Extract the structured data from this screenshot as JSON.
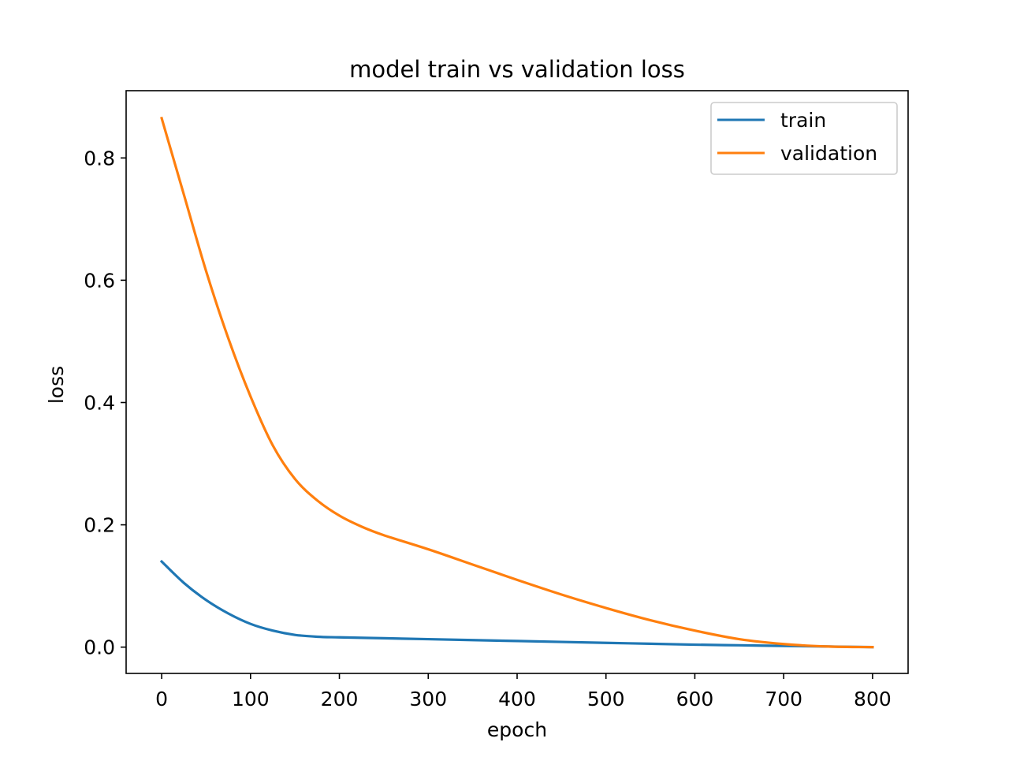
{
  "chart_data": {
    "type": "line",
    "title": "model train vs validation loss",
    "xlabel": "epoch",
    "ylabel": "loss",
    "xlim": [
      -40,
      840
    ],
    "ylim": [
      -0.043,
      0.91
    ],
    "xticks": [
      0,
      100,
      200,
      300,
      400,
      500,
      600,
      700,
      800
    ],
    "xtick_labels": [
      "0",
      "100",
      "200",
      "300",
      "400",
      "500",
      "600",
      "700",
      "800"
    ],
    "yticks": [
      0.0,
      0.2,
      0.4,
      0.6,
      0.8
    ],
    "ytick_labels": [
      "0.0",
      "0.2",
      "0.4",
      "0.6",
      "0.8"
    ],
    "grid": false,
    "legend": "top-right",
    "series": [
      {
        "name": "train",
        "color": "#1f77b4",
        "x": [
          0,
          25,
          50,
          75,
          100,
          125,
          150,
          175,
          200,
          250,
          300,
          350,
          400,
          450,
          500,
          550,
          600,
          650,
          700,
          750,
          800
        ],
        "y": [
          0.14,
          0.105,
          0.077,
          0.055,
          0.038,
          0.027,
          0.02,
          0.017,
          0.016,
          0.0145,
          0.013,
          0.0115,
          0.01,
          0.0085,
          0.007,
          0.0055,
          0.004,
          0.003,
          0.002,
          0.001,
          0.0
        ]
      },
      {
        "name": "validation",
        "color": "#ff7f0e",
        "x": [
          0,
          25,
          50,
          75,
          100,
          125,
          150,
          175,
          200,
          225,
          250,
          300,
          350,
          400,
          450,
          500,
          550,
          600,
          650,
          700,
          750,
          800
        ],
        "y": [
          0.865,
          0.74,
          0.615,
          0.505,
          0.41,
          0.33,
          0.275,
          0.24,
          0.215,
          0.197,
          0.183,
          0.16,
          0.135,
          0.11,
          0.086,
          0.064,
          0.044,
          0.027,
          0.013,
          0.005,
          0.001,
          0.0
        ]
      }
    ]
  }
}
